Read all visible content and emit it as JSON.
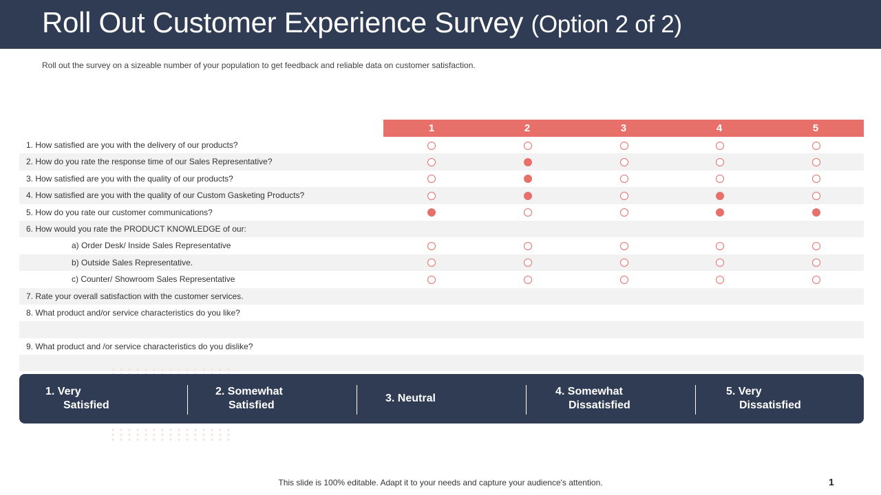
{
  "header": {
    "title_main": "Roll Out Customer Experience Survey",
    "title_sub": "(Option 2 of 2)"
  },
  "subtitle": "Roll out the survey on a sizeable number of your population to get feedback  and reliable  data on customer satisfaction.",
  "scale": [
    "1",
    "2",
    "3",
    "4",
    "5"
  ],
  "rows": [
    {
      "text": "1. How satisfied are you with the delivery  of our products?",
      "indent": false,
      "answers": [
        false,
        false,
        false,
        false,
        false
      ]
    },
    {
      "text": "2. How do you rate the response time of our Sales Representative?",
      "indent": false,
      "answers": [
        false,
        true,
        false,
        false,
        false
      ]
    },
    {
      "text": "3. How satisfied are you with the quality of our products?",
      "indent": false,
      "answers": [
        false,
        true,
        false,
        false,
        false
      ]
    },
    {
      "text": "4. How satisfied are you with the quality of our Custom Gasketing Products?",
      "indent": false,
      "answers": [
        false,
        true,
        false,
        true,
        false
      ]
    },
    {
      "text": "5. How do you rate our customer communications?",
      "indent": false,
      "answers": [
        true,
        false,
        false,
        true,
        true
      ]
    },
    {
      "text": "6. How would you rate the PRODUCT  KNOWLEDGE  of our:",
      "indent": false,
      "answers": null
    },
    {
      "text": "a) Order  Desk/ Inside Sales Representative",
      "indent": true,
      "answers": [
        false,
        false,
        false,
        false,
        false
      ]
    },
    {
      "text": "b) Outside Sales Representative.",
      "indent": true,
      "answers": [
        false,
        false,
        false,
        false,
        false
      ]
    },
    {
      "text": "c) Counter/  Showroom  Sales Representative",
      "indent": true,
      "answers": [
        false,
        false,
        false,
        false,
        false
      ]
    },
    {
      "text": "7. Rate your overall  satisfaction with the customer services.",
      "indent": false,
      "answers": null
    },
    {
      "text": "8. What product and/or service characteristics do you like?",
      "indent": false,
      "answers": null
    },
    {
      "text": "",
      "indent": false,
      "answers": null
    },
    {
      "text": "9. What product and /or service characteristics do you dislike?",
      "indent": false,
      "answers": null
    },
    {
      "text": "",
      "indent": false,
      "answers": null
    }
  ],
  "legend": [
    {
      "line1": "1.  Very",
      "line2": "Satisfied"
    },
    {
      "line1": "2. Somewhat",
      "line2": "Satisfied"
    },
    {
      "line1": "3. Neutral",
      "line2": ""
    },
    {
      "line1": "4. Somewhat",
      "line2": "Dissatisfied"
    },
    {
      "line1": "5. Very",
      "line2": "Dissatisfied"
    }
  ],
  "footer": "This slide is 100% editable. Adapt it to your needs and capture your audience's attention.",
  "page_number": "1",
  "colors": {
    "navy": "#2f3c54",
    "accent": "#e8706a",
    "row_shade": "#f2f2f2"
  }
}
